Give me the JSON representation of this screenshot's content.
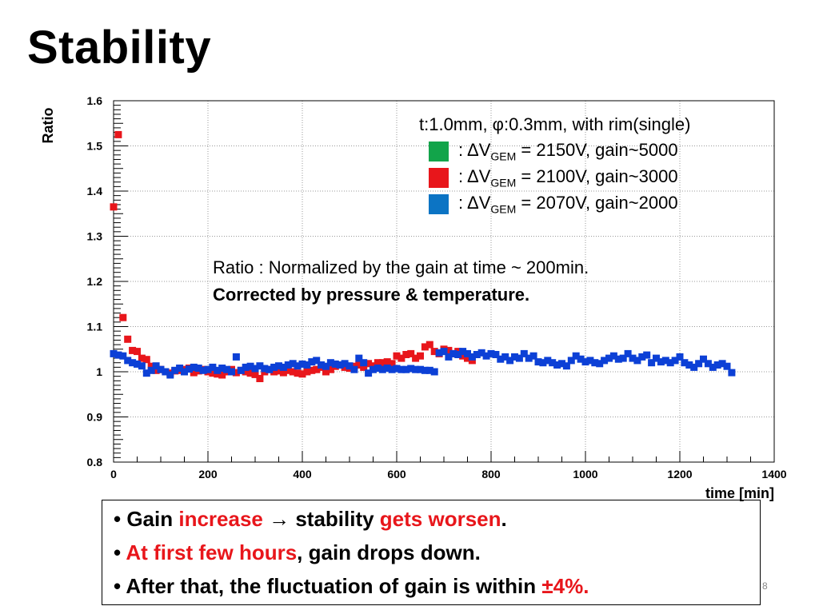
{
  "slide": {
    "title": "Stability",
    "page_number": "8"
  },
  "chart_data": {
    "type": "scatter",
    "ylabel": "Ratio",
    "xlabel": "time [min]",
    "xlim": [
      0,
      1400
    ],
    "ylim": [
      0.8,
      1.6
    ],
    "xticks": [
      "0",
      "200",
      "400",
      "600",
      "800",
      "1000",
      "1200",
      "1400"
    ],
    "yticks": [
      "0.8",
      "0.9",
      "1",
      "1.1",
      "1.2",
      "1.3",
      "1.4",
      "1.5",
      "1.6"
    ],
    "grid": true,
    "legend_title": "t:1.0mm, φ:0.3mm, with rim(single)",
    "legend_position": "top-right",
    "series": [
      {
        "name": ": ΔV_GEM = 2150V, gain~5000",
        "color": "#12a44a",
        "x": [],
        "y": []
      },
      {
        "name": ": ΔV_GEM = 2100V, gain~3000",
        "color": "#e8161b",
        "x": [
          0,
          10,
          20,
          30,
          40,
          50,
          60,
          70,
          80,
          90,
          100,
          110,
          120,
          130,
          140,
          150,
          160,
          170,
          180,
          190,
          200,
          210,
          220,
          230,
          240,
          250,
          260,
          270,
          280,
          290,
          300,
          310,
          320,
          330,
          340,
          350,
          360,
          370,
          380,
          390,
          400,
          410,
          420,
          430,
          440,
          450,
          460,
          470,
          480,
          490,
          500,
          510,
          520,
          530,
          540,
          550,
          560,
          570,
          580,
          590,
          600,
          610,
          620,
          630,
          640,
          650,
          660,
          670,
          680,
          690,
          700,
          710,
          720,
          730,
          740,
          750,
          760
        ],
        "y": [
          1.365,
          1.525,
          1.12,
          1.072,
          1.047,
          1.045,
          1.03,
          1.027,
          1.012,
          1.003,
          1.005,
          1.0,
          0.997,
          1.002,
          1.003,
          1.005,
          1.008,
          0.998,
          1.002,
          1.005,
          1.0,
          0.997,
          0.995,
          0.993,
          1.0,
          1.005,
          0.998,
          1.003,
          1.0,
          0.997,
          0.994,
          0.985,
          1.0,
          1.005,
          1.0,
          1.002,
          0.998,
          1.003,
          1.0,
          0.997,
          0.995,
          1.0,
          1.003,
          1.005,
          1.01,
          1.0,
          1.005,
          1.012,
          1.015,
          1.01,
          1.008,
          1.012,
          1.015,
          1.01,
          1.018,
          1.013,
          1.02,
          1.02,
          1.022,
          1.018,
          1.035,
          1.03,
          1.038,
          1.04,
          1.03,
          1.035,
          1.055,
          1.06,
          1.045,
          1.04,
          1.05,
          1.047,
          1.04,
          1.045,
          1.035,
          1.03,
          1.025
        ]
      },
      {
        "name": ": ΔV_GEM = 2070V, gain~2000",
        "color": "#0c40d6",
        "x": [
          0,
          10,
          20,
          30,
          40,
          50,
          60,
          70,
          80,
          90,
          100,
          110,
          120,
          130,
          140,
          150,
          160,
          170,
          180,
          190,
          200,
          210,
          220,
          230,
          240,
          250,
          260,
          270,
          280,
          290,
          300,
          310,
          320,
          330,
          340,
          350,
          360,
          370,
          380,
          390,
          400,
          410,
          420,
          430,
          440,
          450,
          460,
          470,
          480,
          490,
          500,
          510,
          520,
          530,
          540,
          550,
          560,
          570,
          580,
          590,
          600,
          610,
          620,
          630,
          640,
          650,
          660,
          670,
          680,
          690,
          700,
          710,
          720,
          730,
          740,
          750,
          760,
          770,
          780,
          790,
          800,
          810,
          820,
          830,
          840,
          850,
          860,
          870,
          880,
          890,
          900,
          910,
          920,
          930,
          940,
          950,
          960,
          970,
          980,
          990,
          1000,
          1010,
          1020,
          1030,
          1040,
          1050,
          1060,
          1070,
          1080,
          1090,
          1100,
          1110,
          1120,
          1130,
          1140,
          1150,
          1160,
          1170,
          1180,
          1190,
          1200,
          1210,
          1220,
          1230,
          1240,
          1250,
          1260,
          1270,
          1280,
          1290,
          1300,
          1310
        ],
        "y": [
          1.04,
          1.037,
          1.035,
          1.025,
          1.02,
          1.017,
          1.013,
          0.997,
          1.003,
          1.013,
          1.005,
          1.0,
          0.993,
          1.003,
          1.008,
          1.0,
          1.006,
          1.01,
          1.008,
          1.003,
          1.005,
          1.01,
          1.003,
          1.008,
          1.005,
          1.0,
          1.033,
          1.003,
          1.01,
          1.012,
          1.007,
          1.013,
          1.007,
          1.005,
          1.01,
          1.013,
          1.01,
          1.015,
          1.018,
          1.013,
          1.017,
          1.015,
          1.022,
          1.025,
          1.015,
          1.012,
          1.02,
          1.017,
          1.015,
          1.018,
          1.013,
          1.005,
          1.03,
          1.02,
          0.997,
          1.005,
          1.008,
          1.005,
          1.008,
          1.005,
          1.007,
          1.005,
          1.005,
          1.007,
          1.005,
          1.005,
          1.003,
          1.003,
          1.0,
          1.042,
          1.045,
          1.033,
          1.04,
          1.038,
          1.045,
          1.04,
          1.033,
          1.038,
          1.042,
          1.035,
          1.04,
          1.038,
          1.028,
          1.033,
          1.025,
          1.033,
          1.03,
          1.04,
          1.03,
          1.035,
          1.022,
          1.02,
          1.025,
          1.02,
          1.015,
          1.018,
          1.013,
          1.025,
          1.035,
          1.028,
          1.022,
          1.025,
          1.02,
          1.018,
          1.025,
          1.03,
          1.035,
          1.028,
          1.03,
          1.04,
          1.03,
          1.025,
          1.033,
          1.037,
          1.02,
          1.03,
          1.022,
          1.025,
          1.02,
          1.025,
          1.033,
          1.02,
          1.015,
          1.01,
          1.018,
          1.028,
          1.018,
          1.01,
          1.015,
          1.018,
          1.012,
          0.998
        ]
      }
    ]
  },
  "legend": {
    "title": "t:1.0mm, φ:0.3mm, with rim(single)",
    "items": [
      {
        "color": "#12a44a",
        "pre": ": ΔV",
        "sub": "GEM",
        "post": " = 2150V, gain~5000"
      },
      {
        "color": "#e8161b",
        "pre": ": ΔV",
        "sub": "GEM",
        "post": " = 2100V, gain~3000"
      },
      {
        "color": "#0c74c4",
        "pre": ": ΔV",
        "sub": "GEM",
        "post": " = 2070V, gain~2000"
      }
    ]
  },
  "annotation": {
    "line1": "Ratio : Normalized by the gain at time ~ 200min.",
    "line2": "Corrected by pressure & temperature."
  },
  "bullets": {
    "b1_a": "• Gain ",
    "b1_b": "increase",
    "b1_c": " → stability ",
    "b1_d": "gets worsen",
    "b1_e": ".",
    "b2_a": "• ",
    "b2_b": "At first few hours",
    "b2_c": ", gain drops down.",
    "b3_a": "• After that, the fluctuation of gain is within ",
    "b3_b": "±4%."
  },
  "colors": {
    "accent_red": "#e8161b",
    "grid": "#999999"
  }
}
